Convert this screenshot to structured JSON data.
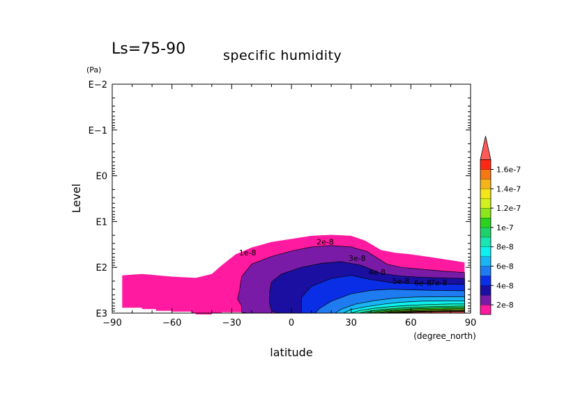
{
  "chart_data": {
    "type": "contour",
    "title": "specific humidity",
    "period_label": "Ls=75-90",
    "xlabel": "latitude",
    "xunit": "(degree_north)",
    "ylabel": "Level",
    "yunit": "(Pa)",
    "xlim": [
      -90,
      90
    ],
    "ylim": [
      1000,
      0.01
    ],
    "yscale": "log",
    "xticks": [
      -90,
      -60,
      -30,
      0,
      30,
      60,
      90
    ],
    "xtick_labels": [
      "−90",
      "−60",
      "−30",
      "0",
      "30",
      "60",
      "90"
    ],
    "yticks": [
      0.01,
      0.1,
      1,
      10,
      100,
      1000
    ],
    "ytick_labels": [
      "E−2",
      "E−1",
      "E0",
      "E1",
      "E2",
      "E3"
    ],
    "contour_labels": [
      "1e-8",
      "2e-8",
      "3e-8",
      "4e-8",
      "5e-8",
      "6e-8",
      "7e-8"
    ],
    "colorbar": {
      "levels": [
        1e-08,
        2e-08,
        3e-08,
        4e-08,
        5e-08,
        6e-08,
        7e-08,
        8e-08,
        9e-08,
        1e-07,
        1.1e-07,
        1.2e-07,
        1.3e-07,
        1.4e-07,
        1.5e-07,
        1.6e-07,
        1.7e-07
      ],
      "tick_labels": [
        "2e-8",
        "4e-8",
        "6e-8",
        "8e-8",
        "1e-7",
        "1.2e-7",
        "1.4e-7",
        "1.6e-7"
      ],
      "colors": [
        "#ff1aa0",
        "#7a1ba8",
        "#1a0fa0",
        "#0a2ee6",
        "#1e7cf0",
        "#18b4f4",
        "#0ff0f0",
        "#18e6b4",
        "#1ed26a",
        "#2ad21e",
        "#8ce61e",
        "#d2f01e",
        "#f5e61a",
        "#f5b41a",
        "#f57814",
        "#ff2814",
        "#ff5a5a"
      ],
      "extend": "max"
    }
  }
}
